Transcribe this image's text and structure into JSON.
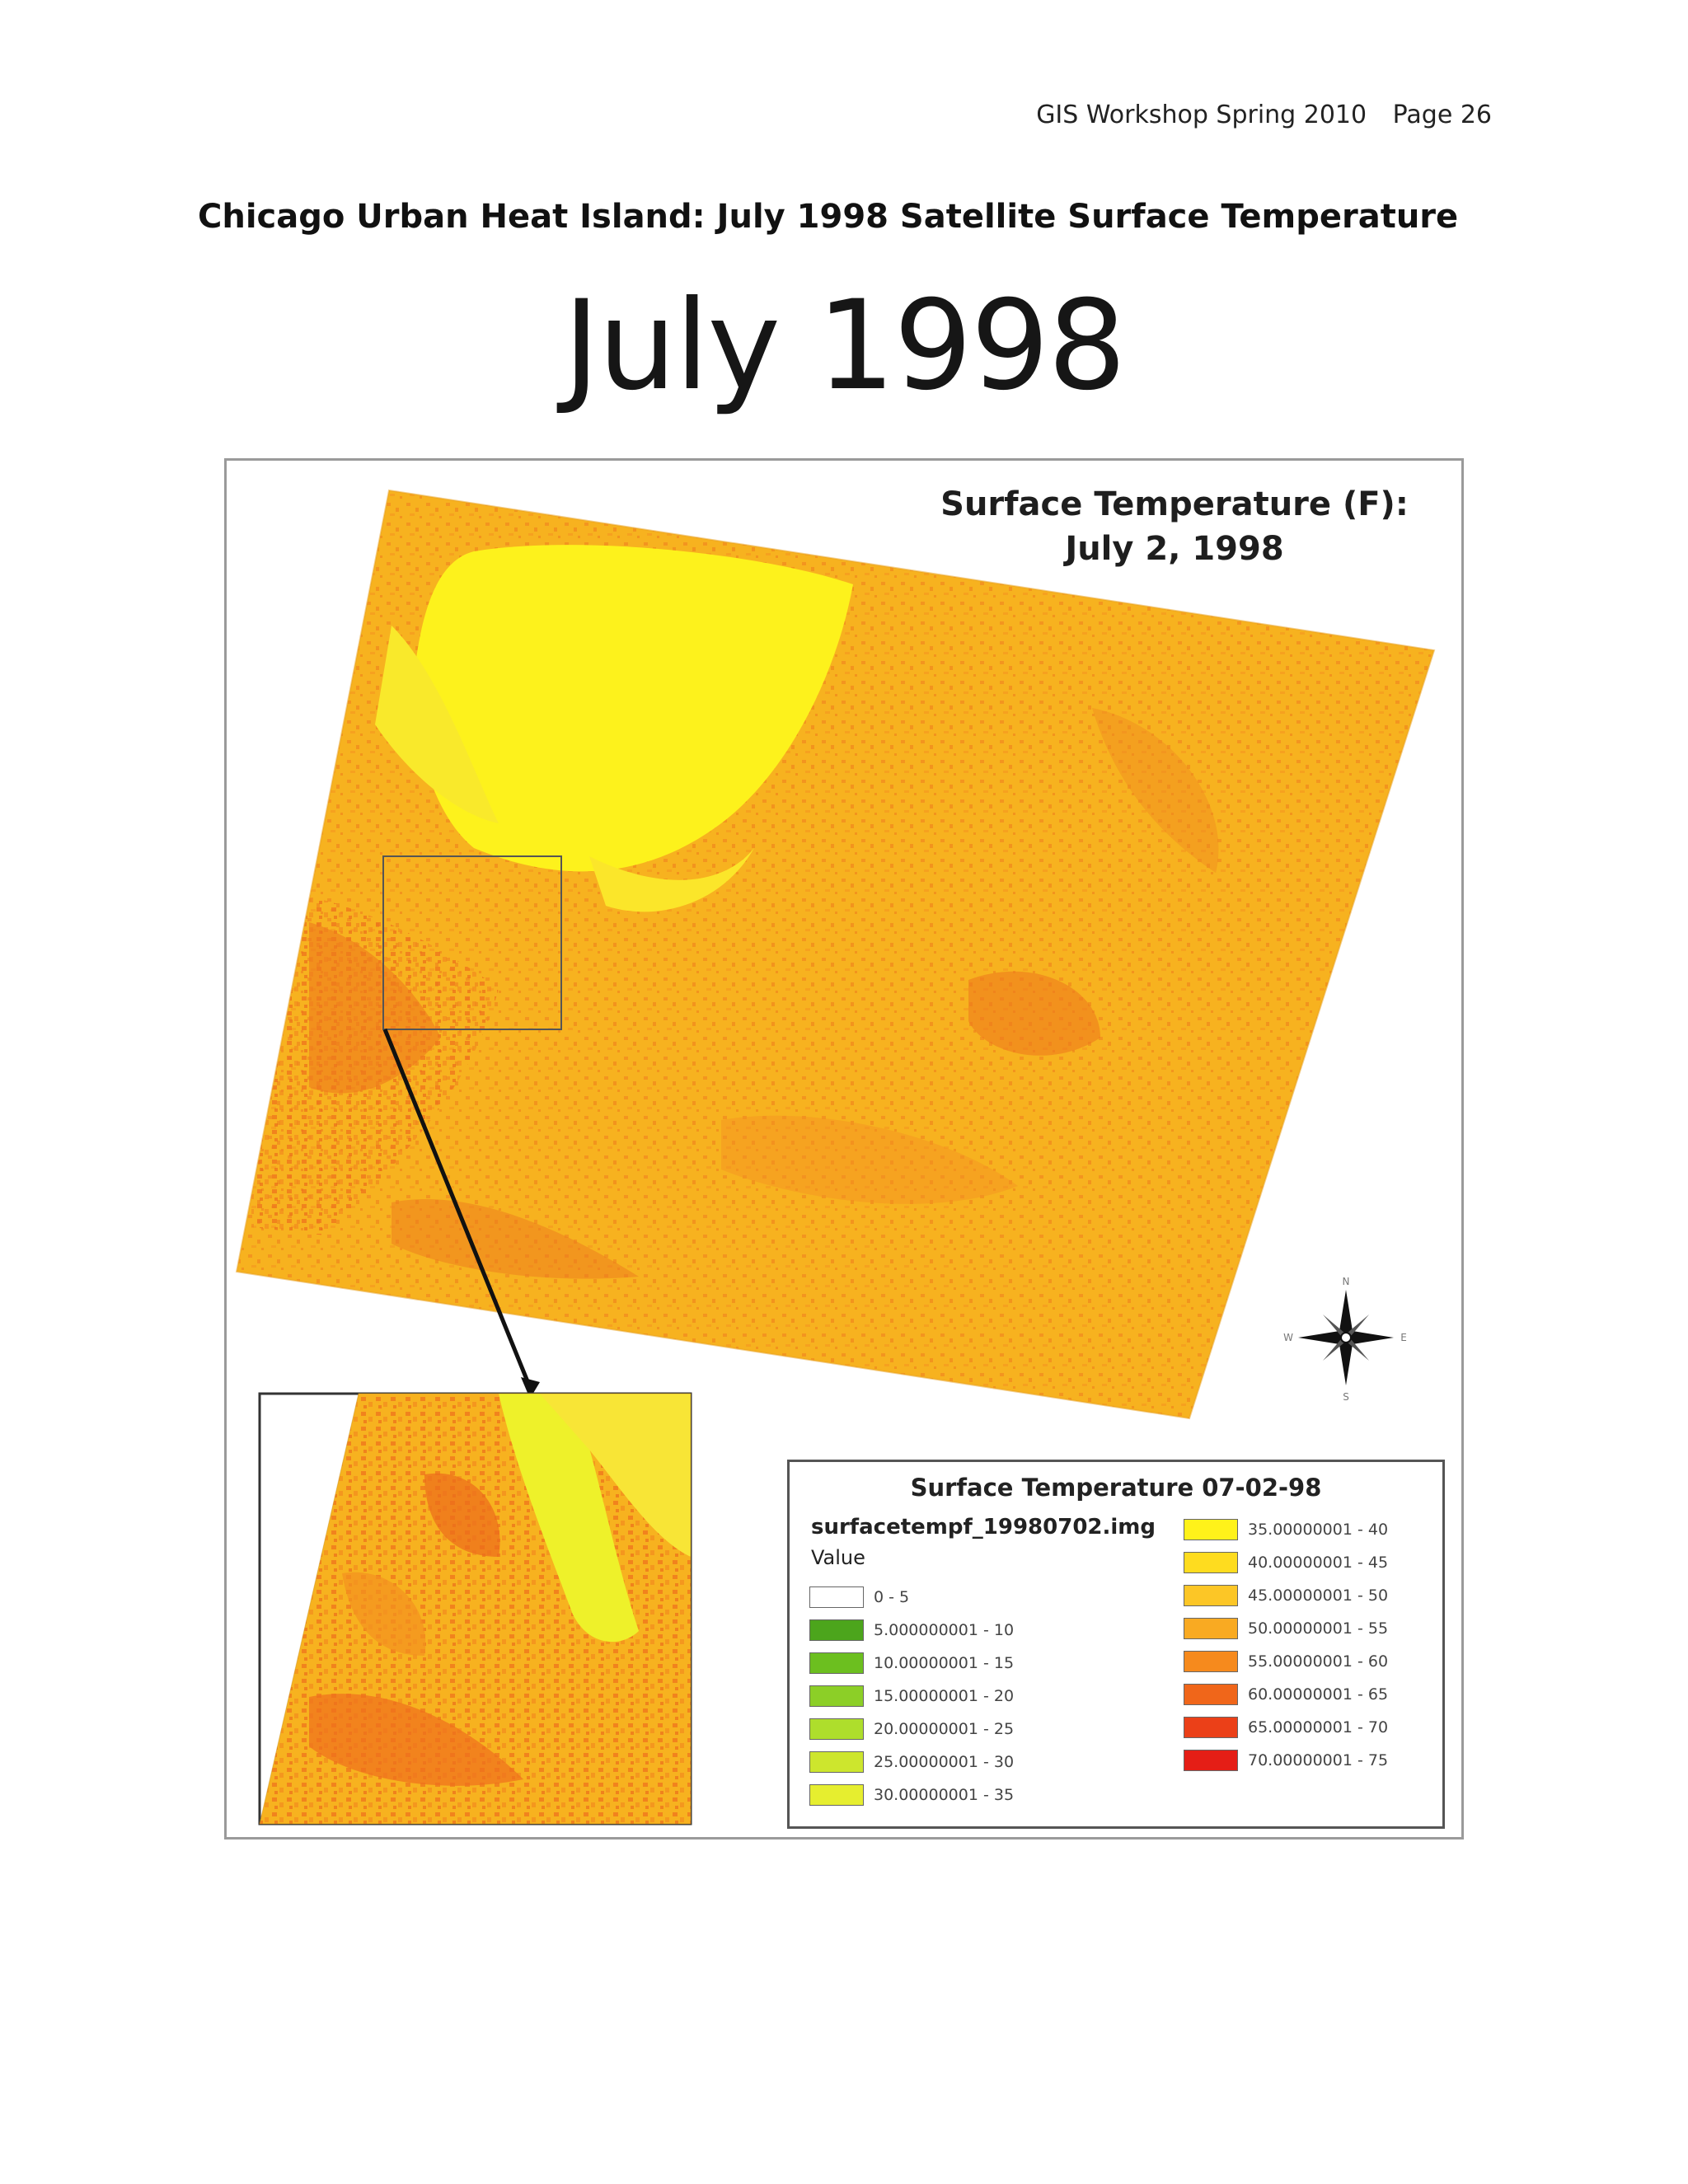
{
  "header": {
    "doc_name": "GIS Workshop Spring 2010",
    "page": "Page 26"
  },
  "document_title": "Chicago Urban Heat Island: July 1998 Satellite Surface Temperature",
  "figure": {
    "heading": "July 1998",
    "map_title_line1": "Surface Temperature (F):",
    "map_title_line2": "July 2, 1998",
    "compass": {
      "n": "N",
      "s": "S",
      "e": "E",
      "w": "W"
    },
    "legend": {
      "title": "Surface Temperature 07-02-98",
      "layer": "surfacetempf_19980702.img",
      "field": "Value",
      "classes_left": [
        {
          "label": "0 - 5",
          "color": "#ffffff"
        },
        {
          "label": "5.000000001 - 10",
          "color": "#4ca51c"
        },
        {
          "label": "10.00000001 - 15",
          "color": "#6cbf1f"
        },
        {
          "label": "15.00000001 - 20",
          "color": "#8ccf27"
        },
        {
          "label": "20.00000001 - 25",
          "color": "#aede2c"
        },
        {
          "label": "25.00000001 - 30",
          "color": "#cde62d"
        },
        {
          "label": "30.00000001 - 35",
          "color": "#e6ee2f"
        }
      ],
      "classes_right": [
        {
          "label": "35.00000001 - 40",
          "color": "#fff21a"
        },
        {
          "label": "40.00000001 - 45",
          "color": "#fedc1f"
        },
        {
          "label": "45.00000001 - 50",
          "color": "#fcc626"
        },
        {
          "label": "50.00000001 - 55",
          "color": "#f9aa22"
        },
        {
          "label": "55.00000001 - 60",
          "color": "#f68a1d"
        },
        {
          "label": "60.00000001 - 65",
          "color": "#f0661a"
        },
        {
          "label": "65.00000001 - 70",
          "color": "#eb4018"
        },
        {
          "label": "70.00000001 - 75",
          "color": "#e51e16"
        }
      ]
    }
  }
}
